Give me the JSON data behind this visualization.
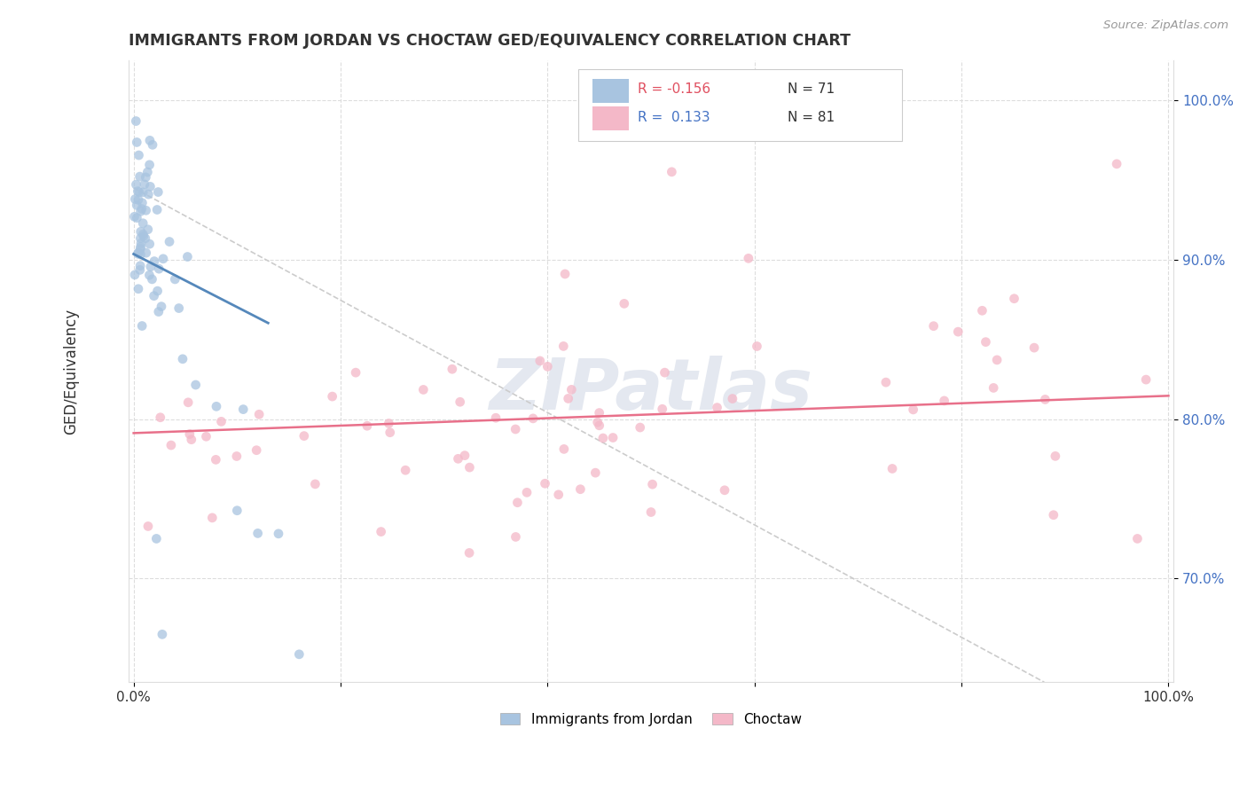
{
  "title": "IMMIGRANTS FROM JORDAN VS CHOCTAW GED/EQUIVALENCY CORRELATION CHART",
  "source": "Source: ZipAtlas.com",
  "ylabel": "GED/Equivalency",
  "xlim": [
    -0.005,
    1.005
  ],
  "ylim": [
    0.635,
    1.025
  ],
  "xtick_labels": [
    "0.0%",
    "",
    "",
    "",
    "",
    "100.0%"
  ],
  "xtick_vals": [
    0.0,
    0.2,
    0.4,
    0.6,
    0.8,
    1.0
  ],
  "ytick_labels": [
    "70.0%",
    "80.0%",
    "90.0%",
    "100.0%"
  ],
  "ytick_vals": [
    0.7,
    0.8,
    0.9,
    1.0
  ],
  "color_jordan": "#a8c4e0",
  "color_choctaw": "#f4b8c8",
  "color_line_jordan": "#5588bb",
  "color_line_choctaw": "#e8708a",
  "color_line_dashed": "#cccccc",
  "background_color": "#ffffff",
  "watermark": "ZIPatlas",
  "title_color": "#333333",
  "axis_label_color": "#333333",
  "ytick_color": "#4472c4",
  "xtick_color": "#333333",
  "grid_color": "#dddddd",
  "source_color": "#999999"
}
